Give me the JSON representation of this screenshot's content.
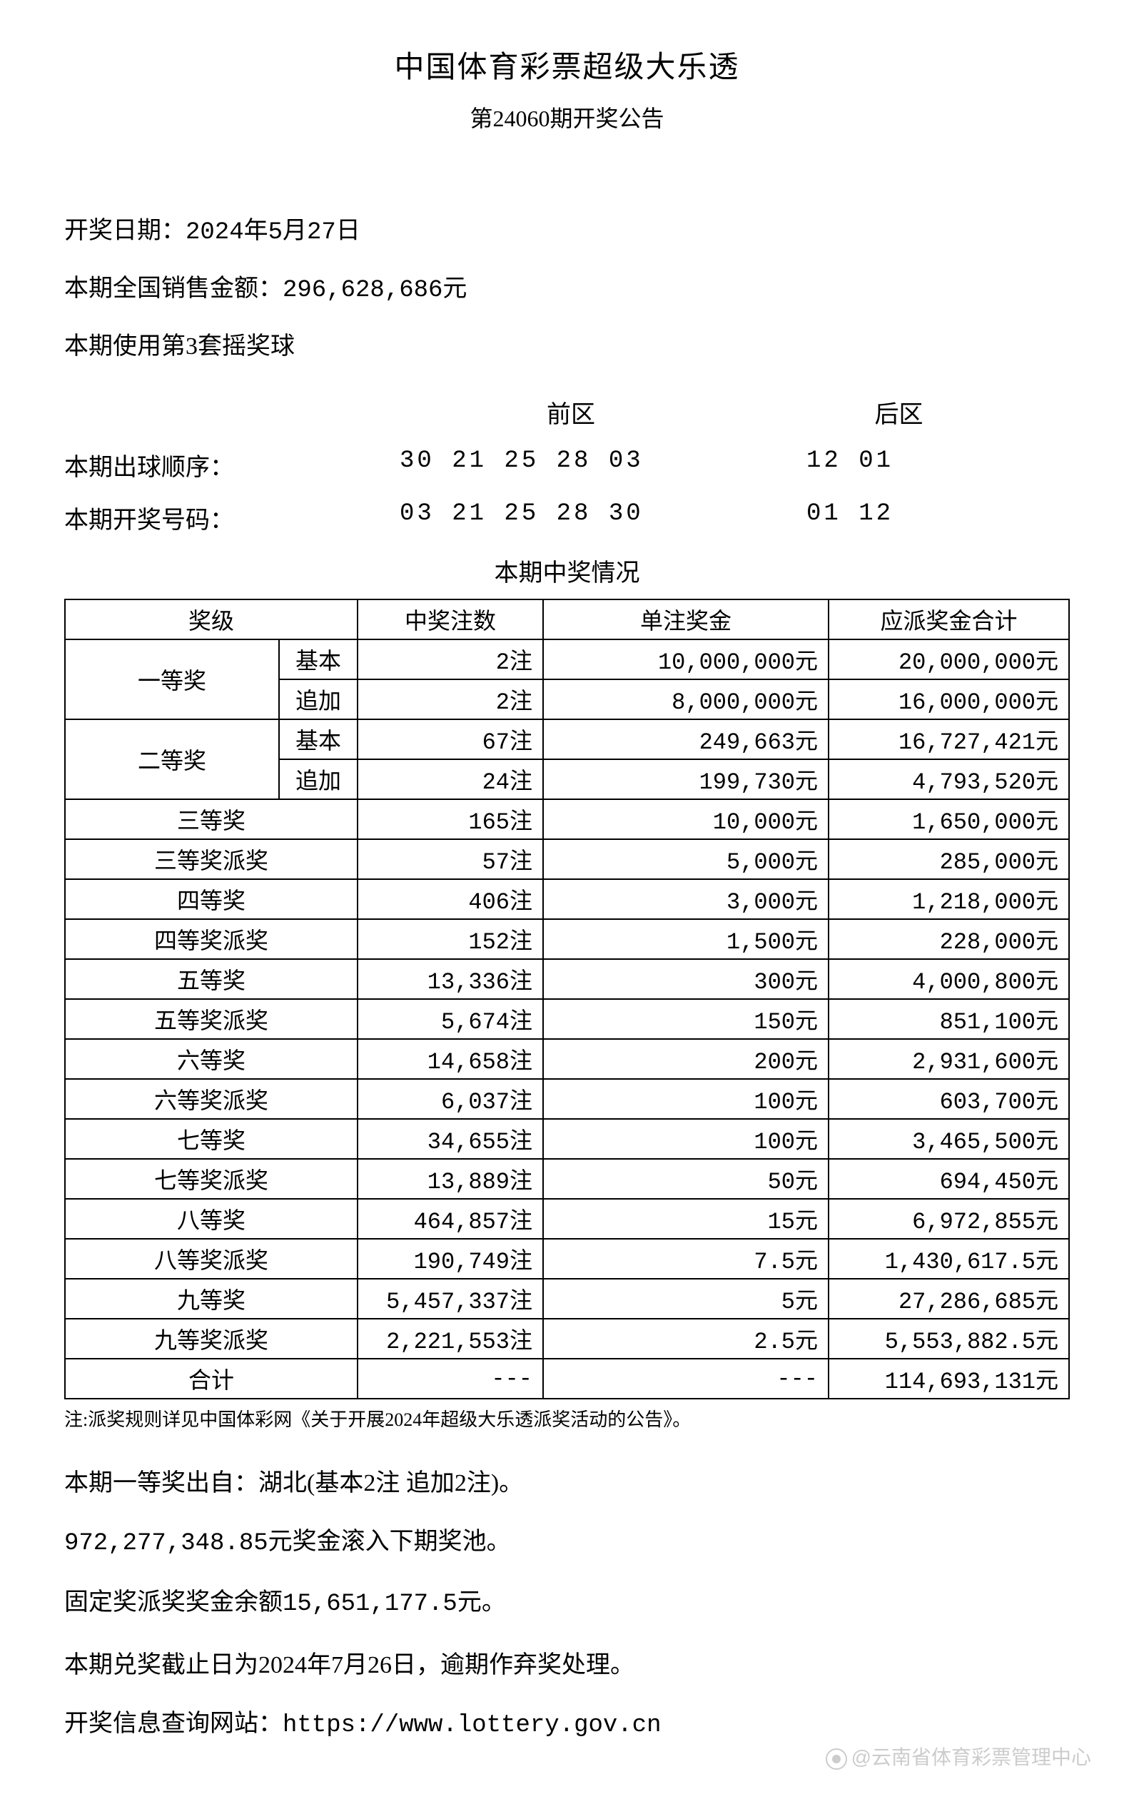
{
  "header": {
    "title": "中国体育彩票超级大乐透",
    "subtitle": "第24060期开奖公告"
  },
  "info": {
    "draw_date_label": "开奖日期：",
    "draw_date": "2024年5月27日",
    "sales_label": "本期全国销售金额：",
    "sales_amount": "296,628,686元",
    "ball_set": "本期使用第3套摇奖球"
  },
  "numbers": {
    "front_label": "前区",
    "back_label": "后区",
    "draw_order_label": "本期出球顺序：",
    "draw_order_front": "30 21 25 28 03",
    "draw_order_back": "12 01",
    "winning_label": "本期开奖号码：",
    "winning_front": "03 21 25 28 30",
    "winning_back": "01 12"
  },
  "prize_section_title": "本期中奖情况",
  "table": {
    "headers": {
      "level": "奖级",
      "count": "中奖注数",
      "per": "单注奖金",
      "total": "应派奖金合计"
    },
    "grouped": [
      {
        "level": "一等奖",
        "rows": [
          {
            "sub": "基本",
            "count": "2注",
            "per": "10,000,000元",
            "total": "20,000,000元"
          },
          {
            "sub": "追加",
            "count": "2注",
            "per": "8,000,000元",
            "total": "16,000,000元"
          }
        ]
      },
      {
        "level": "二等奖",
        "rows": [
          {
            "sub": "基本",
            "count": "67注",
            "per": "249,663元",
            "total": "16,727,421元"
          },
          {
            "sub": "追加",
            "count": "24注",
            "per": "199,730元",
            "total": "4,793,520元"
          }
        ]
      }
    ],
    "simple": [
      {
        "level": "三等奖",
        "count": "165注",
        "per": "10,000元",
        "total": "1,650,000元"
      },
      {
        "level": "三等奖派奖",
        "count": "57注",
        "per": "5,000元",
        "total": "285,000元"
      },
      {
        "level": "四等奖",
        "count": "406注",
        "per": "3,000元",
        "total": "1,218,000元"
      },
      {
        "level": "四等奖派奖",
        "count": "152注",
        "per": "1,500元",
        "total": "228,000元"
      },
      {
        "level": "五等奖",
        "count": "13,336注",
        "per": "300元",
        "total": "4,000,800元"
      },
      {
        "level": "五等奖派奖",
        "count": "5,674注",
        "per": "150元",
        "total": "851,100元"
      },
      {
        "level": "六等奖",
        "count": "14,658注",
        "per": "200元",
        "total": "2,931,600元"
      },
      {
        "level": "六等奖派奖",
        "count": "6,037注",
        "per": "100元",
        "total": "603,700元"
      },
      {
        "level": "七等奖",
        "count": "34,655注",
        "per": "100元",
        "total": "3,465,500元"
      },
      {
        "level": "七等奖派奖",
        "count": "13,889注",
        "per": "50元",
        "total": "694,450元"
      },
      {
        "level": "八等奖",
        "count": "464,857注",
        "per": "15元",
        "total": "6,972,855元"
      },
      {
        "level": "八等奖派奖",
        "count": "190,749注",
        "per": "7.5元",
        "total": "1,430,617.5元"
      },
      {
        "level": "九等奖",
        "count": "5,457,337注",
        "per": "5元",
        "total": "27,286,685元"
      },
      {
        "level": "九等奖派奖",
        "count": "2,221,553注",
        "per": "2.5元",
        "total": "5,553,882.5元"
      }
    ],
    "total_row": {
      "level": "合计",
      "count": "---",
      "per": "---",
      "total": "114,693,131元"
    }
  },
  "note": "注:派奖规则详见中国体彩网《关于开展2024年超级大乐透派奖活动的公告》。",
  "footer": {
    "line1": "本期一等奖出自：湖北(基本2注 追加2注)。",
    "line2": "972,277,348.85元奖金滚入下期奖池。",
    "line3": "固定奖派奖奖金余额15,651,177.5元。",
    "line4": "本期兑奖截止日为2024年7月26日，逾期作弃奖处理。",
    "line5": "开奖信息查询网站：https://www.lottery.gov.cn"
  },
  "watermark": "@云南省体育彩票管理中心"
}
